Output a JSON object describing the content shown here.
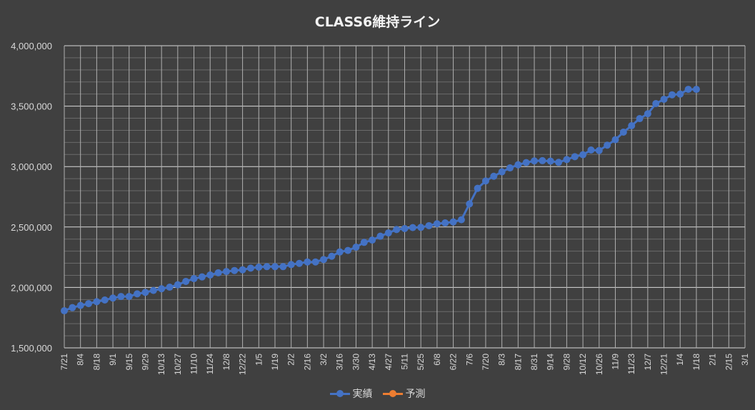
{
  "chart_data": {
    "type": "line",
    "title": "CLASS6維持ライン",
    "xlabel": "",
    "ylabel": "",
    "ylim": [
      1500000,
      4000000
    ],
    "y_ticks": [
      "1,500,000",
      "2,000,000",
      "2,500,000",
      "3,000,000",
      "3,500,000",
      "4,000,000"
    ],
    "y_tick_values": [
      1500000,
      2000000,
      2500000,
      3000000,
      3500000,
      4000000
    ],
    "y_minor_step": 100000,
    "grid": true,
    "x_tick_labels": [
      "7/21",
      "8/4",
      "8/18",
      "9/1",
      "9/15",
      "9/29",
      "10/13",
      "10/27",
      "11/10",
      "11/24",
      "12/8",
      "12/22",
      "1/5",
      "1/19",
      "2/2",
      "2/16",
      "3/2",
      "3/16",
      "3/30",
      "4/13",
      "4/27",
      "5/11",
      "5/25",
      "6/8",
      "6/22",
      "7/6",
      "7/20",
      "8/3",
      "8/17",
      "8/31",
      "9/14",
      "9/28",
      "10/12",
      "10/26",
      "11/9",
      "11/23",
      "12/7",
      "12/21",
      "1/4",
      "1/18",
      "2/1",
      "2/15",
      "3/1"
    ],
    "x_interval": "weekly",
    "legend_position": "bottom",
    "series": [
      {
        "name": "実績",
        "color": "#4472C4",
        "values": [
          1807000,
          1833000,
          1851000,
          1866000,
          1882000,
          1896000,
          1912000,
          1925000,
          1925000,
          1947000,
          1959000,
          1975000,
          1989000,
          2002000,
          2022000,
          2050000,
          2073000,
          2087000,
          2103000,
          2121000,
          2132000,
          2140000,
          2146000,
          2160000,
          2168000,
          2172000,
          2172000,
          2172000,
          2189000,
          2199000,
          2211000,
          2211000,
          2231000,
          2258000,
          2294000,
          2306000,
          2333000,
          2373000,
          2392000,
          2424000,
          2451000,
          2479000,
          2487000,
          2495000,
          2497000,
          2511000,
          2527000,
          2534000,
          2542000,
          2560000,
          2691000,
          2820000,
          2881000,
          2920000,
          2956000,
          2989000,
          3015000,
          3033000,
          3047000,
          3049000,
          3045000,
          3035000,
          3058000,
          3082000,
          3098000,
          3137000,
          3133000,
          3177000,
          3222000,
          3285000,
          3338000,
          3397000,
          3437000,
          3521000,
          3557000,
          3594000,
          3600000,
          3639000,
          3639000
        ]
      },
      {
        "name": "予測",
        "color": "#ED7D31",
        "values": []
      }
    ]
  }
}
